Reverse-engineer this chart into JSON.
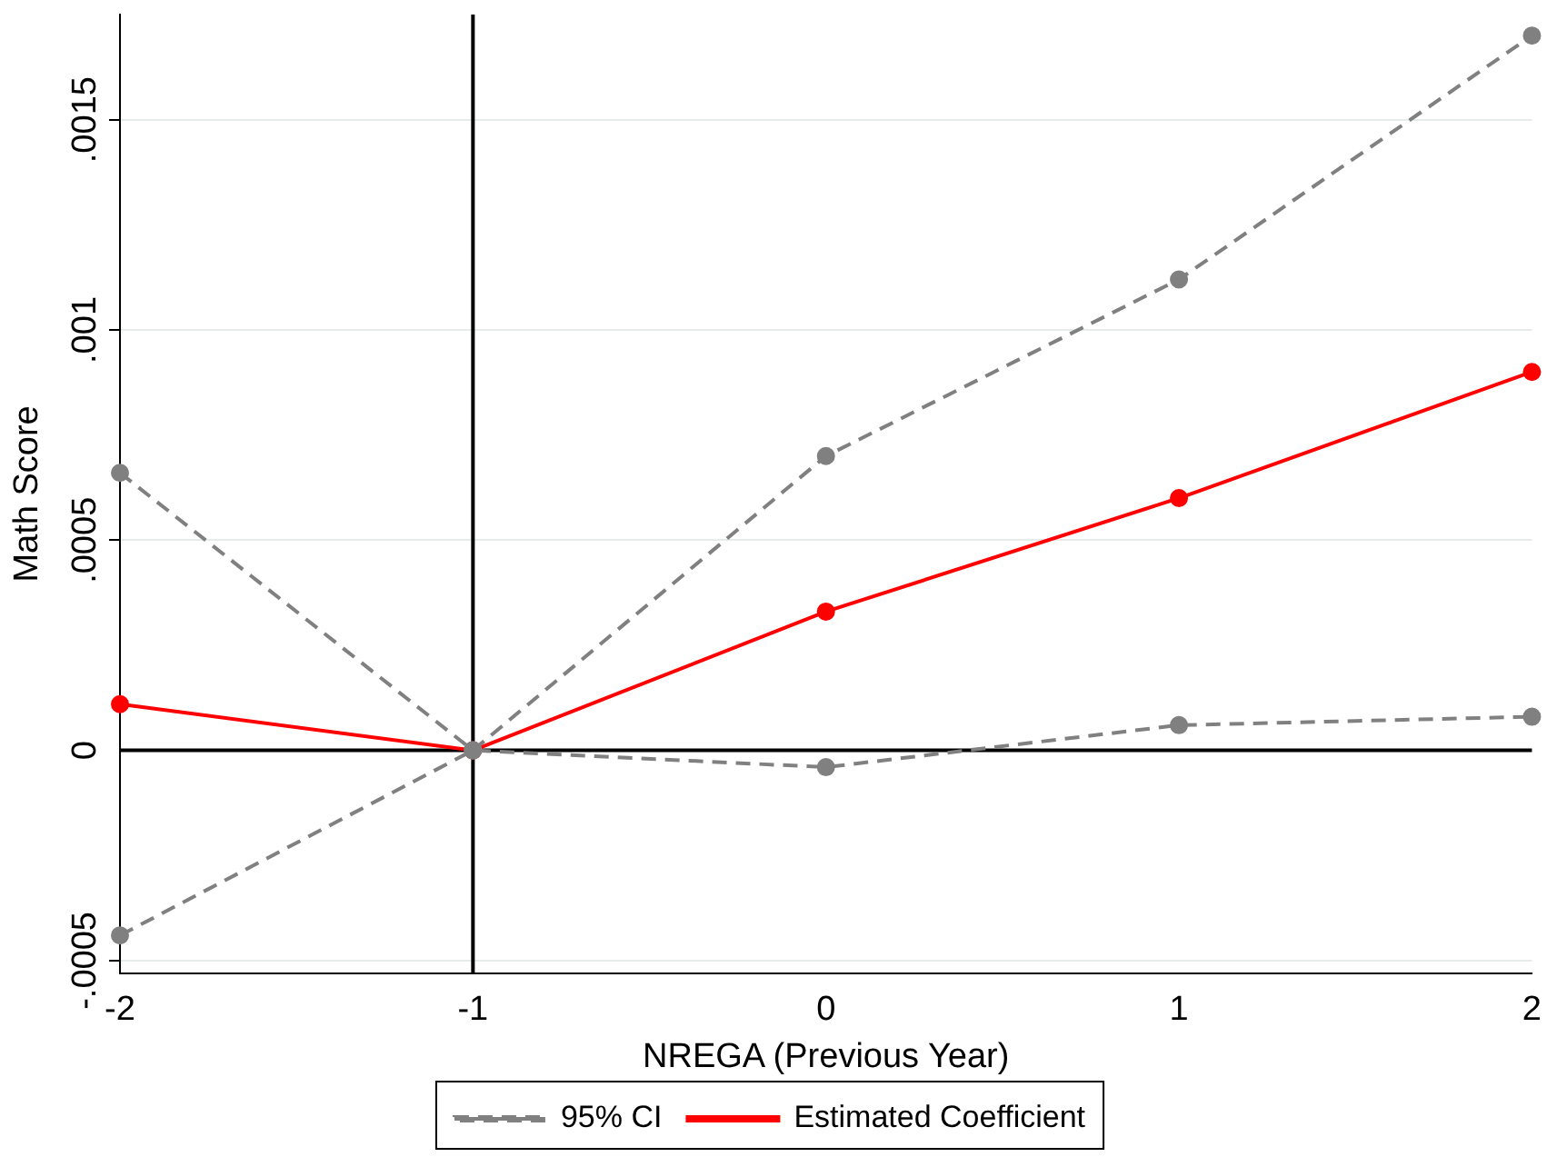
{
  "chart_data": {
    "type": "line",
    "xlabel": "NREGA (Previous Year)",
    "ylabel": "Math Score",
    "x": [
      -2,
      -1,
      0,
      1,
      2
    ],
    "series": [
      {
        "name": "95% CI",
        "color": "#808080",
        "line_style": "dashed",
        "values": [
          0.00066,
          0,
          0.0007,
          0.00112,
          0.0017
        ]
      },
      {
        "color": "#808080",
        "line_style": "dashed",
        "values": [
          -0.00044,
          0,
          -4e-05,
          6e-05,
          8e-05
        ]
      },
      {
        "name": "Estimated Coefficient",
        "color": "#ff0000",
        "line_style": "solid",
        "values": [
          0.00011,
          0,
          0.00033,
          0.0006,
          0.0009
        ]
      }
    ],
    "xlim": [
      -2,
      2
    ],
    "xticks": [
      -2,
      -1,
      0,
      1,
      2
    ],
    "ylim": [
      -0.00053,
      0.00175
    ],
    "yticks": [
      {
        "value": -0.0005,
        "label": "-.0005"
      },
      0,
      {
        "value": 0.0005,
        "label": ".0005"
      },
      {
        "value": 0.001,
        "label": ".001"
      },
      {
        "value": 0.0015,
        "label": ".0015"
      }
    ],
    "ref_lines": [
      {
        "axis": "x",
        "value": -1,
        "color": "#000000"
      },
      {
        "axis": "y",
        "value": 0,
        "color": "#000000"
      }
    ],
    "grid": "y",
    "legend": "bottom",
    "marker": "circle"
  }
}
